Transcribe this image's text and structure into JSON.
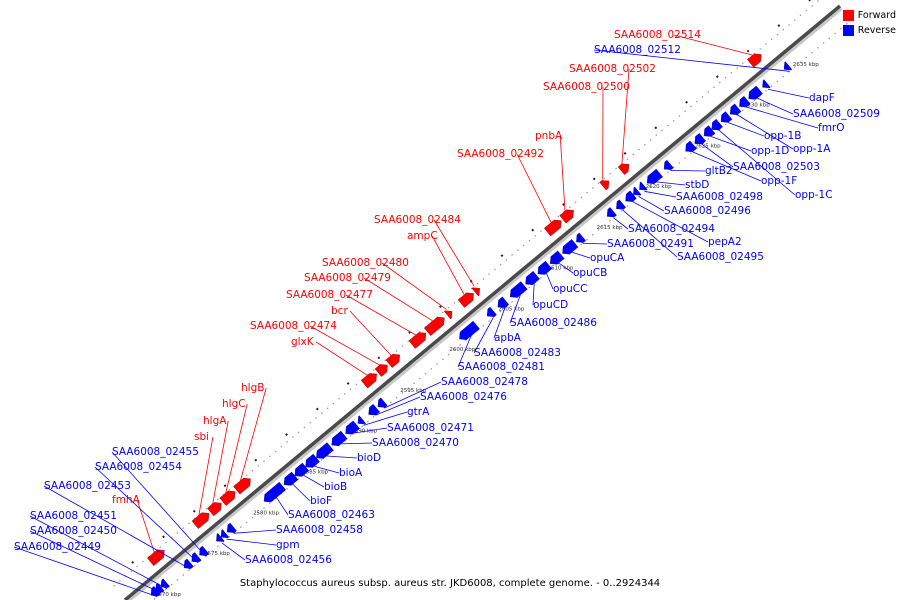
{
  "legend": {
    "forward": {
      "label": "Forward",
      "color": "#ff0000"
    },
    "reverse": {
      "label": "Reverse",
      "color": "#0000ff"
    }
  },
  "caption": "Staphylococcus aureus subsp. aureus str. JKD6008, complete genome. - 0..2924344",
  "ticks": [
    "2570 kbp",
    "2575 kbp",
    "2580 kbp",
    "2585 kbp",
    "2590 kbp",
    "2595 kbp",
    "2600 kbp",
    "2605 kbp",
    "2610 kbp",
    "2615 kbp",
    "2620 kbp",
    "2625 kbp",
    "2630 kbp",
    "2635 kbp"
  ],
  "genes": [
    {
      "name": "SAA6008_02449",
      "strand": "reverse",
      "label": "SAA6008_02449"
    },
    {
      "name": "SAA6008_02450",
      "strand": "reverse",
      "label": "SAA6008_02450"
    },
    {
      "name": "SAA6008_02451",
      "strand": "reverse",
      "label": "SAA6008_02451"
    },
    {
      "name": "fmhA",
      "strand": "forward",
      "label": "fmhA"
    },
    {
      "name": "SAA6008_02453",
      "strand": "reverse",
      "label": "SAA6008_02453"
    },
    {
      "name": "SAA6008_02454",
      "strand": "reverse",
      "label": "SAA6008_02454"
    },
    {
      "name": "SAA6008_02455",
      "strand": "reverse",
      "label": "SAA6008_02455"
    },
    {
      "name": "sbi",
      "strand": "forward",
      "label": "sbi"
    },
    {
      "name": "hlgA",
      "strand": "forward",
      "label": "hlgA"
    },
    {
      "name": "hlgC",
      "strand": "forward",
      "label": "hlgC"
    },
    {
      "name": "hlgB",
      "strand": "forward",
      "label": "hlgB"
    },
    {
      "name": "SAA6008_02456",
      "strand": "reverse",
      "label": "SAA6008_02456"
    },
    {
      "name": "gpm",
      "strand": "reverse",
      "label": "gpm"
    },
    {
      "name": "SAA6008_02458",
      "strand": "reverse",
      "label": "SAA6008_02458"
    },
    {
      "name": "SAA6008_02463",
      "strand": "reverse",
      "label": "SAA6008_02463"
    },
    {
      "name": "bioF",
      "strand": "reverse",
      "label": "bioF"
    },
    {
      "name": "bioB",
      "strand": "reverse",
      "label": "bioB"
    },
    {
      "name": "bioA",
      "strand": "reverse",
      "label": "bioA"
    },
    {
      "name": "bioD",
      "strand": "reverse",
      "label": "bioD"
    },
    {
      "name": "SAA6008_02470",
      "strand": "reverse",
      "label": "SAA6008_02470"
    },
    {
      "name": "SAA6008_02471",
      "strand": "reverse",
      "label": "SAA6008_02471"
    },
    {
      "name": "gtrA",
      "strand": "reverse",
      "label": "gtrA"
    },
    {
      "name": "glxK",
      "strand": "forward",
      "label": "glxK"
    },
    {
      "name": "SAA6008_02474",
      "strand": "forward",
      "label": "SAA6008_02474"
    },
    {
      "name": "bcr",
      "strand": "forward",
      "label": "bcr"
    },
    {
      "name": "SAA6008_02477",
      "strand": "forward",
      "label": "SAA6008_02477"
    },
    {
      "name": "SAA6008_02479",
      "strand": "forward",
      "label": "SAA6008_02479"
    },
    {
      "name": "SAA6008_02480",
      "strand": "forward",
      "label": "SAA6008_02480"
    },
    {
      "name": "ampC",
      "strand": "forward",
      "label": "ampC"
    },
    {
      "name": "SAA6008_02484",
      "strand": "forward",
      "label": "SAA6008_02484"
    },
    {
      "name": "SAA6008_02476",
      "strand": "reverse",
      "label": "SAA6008_02476"
    },
    {
      "name": "SAA6008_02478",
      "strand": "reverse",
      "label": "SAA6008_02478"
    },
    {
      "name": "SAA6008_02481",
      "strand": "reverse",
      "label": "SAA6008_02481"
    },
    {
      "name": "SAA6008_02483",
      "strand": "reverse",
      "label": "SAA6008_02483"
    },
    {
      "name": "apbA",
      "strand": "reverse",
      "label": "apbA"
    },
    {
      "name": "SAA6008_02486",
      "strand": "reverse",
      "label": "SAA6008_02486"
    },
    {
      "name": "opuCD",
      "strand": "reverse",
      "label": "opuCD"
    },
    {
      "name": "opuCC",
      "strand": "reverse",
      "label": "opuCC"
    },
    {
      "name": "opuCB",
      "strand": "reverse",
      "label": "opuCB"
    },
    {
      "name": "opuCA",
      "strand": "reverse",
      "label": "opuCA"
    },
    {
      "name": "SAA6008_02491",
      "strand": "reverse",
      "label": "SAA6008_02491"
    },
    {
      "name": "SAA6008_02492",
      "strand": "forward",
      "label": "SAA6008_02492"
    },
    {
      "name": "pnbA",
      "strand": "forward",
      "label": "pnbA"
    },
    {
      "name": "SAA6008_02494",
      "strand": "reverse",
      "label": "SAA6008_02494"
    },
    {
      "name": "SAA6008_02495",
      "strand": "reverse",
      "label": "SAA6008_02495"
    },
    {
      "name": "pepA2",
      "strand": "reverse",
      "label": "pepA2"
    },
    {
      "name": "SAA6008_02496",
      "strand": "reverse",
      "label": "SAA6008_02496"
    },
    {
      "name": "SAA6008_02498",
      "strand": "reverse",
      "label": "SAA6008_02498"
    },
    {
      "name": "stbD",
      "strand": "reverse",
      "label": "stbD"
    },
    {
      "name": "gltB2",
      "strand": "reverse",
      "label": "gltB2"
    },
    {
      "name": "SAA6008_02500",
      "strand": "forward",
      "label": "SAA6008_02500"
    },
    {
      "name": "SAA6008_02502",
      "strand": "forward",
      "label": "SAA6008_02502"
    },
    {
      "name": "opp-1F",
      "strand": "reverse",
      "label": "opp-1F"
    },
    {
      "name": "SAA6008_02503",
      "strand": "reverse",
      "label": "SAA6008_02503"
    },
    {
      "name": "opp-1D",
      "strand": "reverse",
      "label": "opp-1D"
    },
    {
      "name": "opp-1C",
      "strand": "reverse",
      "label": "opp-1C"
    },
    {
      "name": "opp-1B",
      "strand": "reverse",
      "label": "opp-1B"
    },
    {
      "name": "opp-1A",
      "strand": "reverse",
      "label": "opp-1A"
    },
    {
      "name": "fmrO",
      "strand": "reverse",
      "label": "fmrO"
    },
    {
      "name": "SAA6008_02509",
      "strand": "reverse",
      "label": "SAA6008_02509"
    },
    {
      "name": "dapF",
      "strand": "reverse",
      "label": "dapF"
    },
    {
      "name": "SAA6008_02512",
      "strand": "reverse",
      "label": "SAA6008_02512"
    },
    {
      "name": "SAA6008_02514",
      "strand": "forward",
      "label": "SAA6008_02514"
    }
  ]
}
